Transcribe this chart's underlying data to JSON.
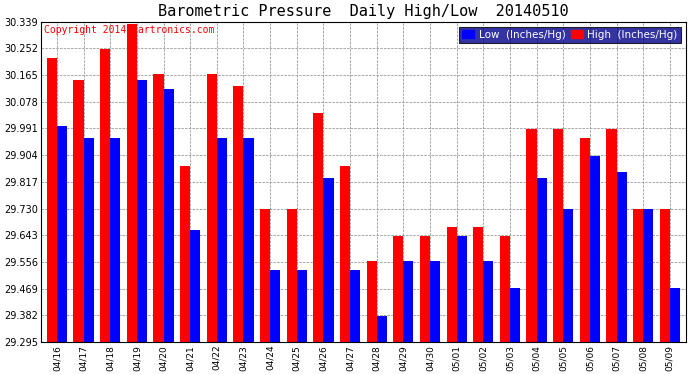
{
  "title": "Barometric Pressure  Daily High/Low  20140510",
  "copyright": "Copyright 2014 Cartronics.com",
  "dates": [
    "04/16",
    "04/17",
    "04/18",
    "04/19",
    "04/20",
    "04/21",
    "04/22",
    "04/23",
    "04/24",
    "04/25",
    "04/26",
    "04/27",
    "04/28",
    "04/29",
    "04/30",
    "05/01",
    "05/02",
    "05/03",
    "05/04",
    "05/05",
    "05/06",
    "05/07",
    "05/08",
    "05/09"
  ],
  "high": [
    30.22,
    30.15,
    30.25,
    30.33,
    30.17,
    29.87,
    30.17,
    30.13,
    29.73,
    29.73,
    30.04,
    29.87,
    29.56,
    29.64,
    29.64,
    29.67,
    29.67,
    29.64,
    29.99,
    29.99,
    29.96,
    29.99,
    29.73,
    29.73
  ],
  "low": [
    30.0,
    29.96,
    29.96,
    30.15,
    30.12,
    29.66,
    29.96,
    29.96,
    29.53,
    29.53,
    29.83,
    29.53,
    29.38,
    29.56,
    29.56,
    29.64,
    29.56,
    29.47,
    29.83,
    29.73,
    29.9,
    29.85,
    29.73,
    29.47
  ],
  "high_color": "#ff0000",
  "low_color": "#0000ff",
  "bg_color": "#ffffff",
  "grid_color": "#888888",
  "ymin": 29.295,
  "ymax": 30.339,
  "yticks": [
    29.295,
    29.382,
    29.469,
    29.556,
    29.643,
    29.73,
    29.817,
    29.904,
    29.991,
    30.078,
    30.165,
    30.252,
    30.339
  ],
  "title_fontsize": 11,
  "copyright_fontsize": 7,
  "legend_fontsize": 7.5,
  "tick_fontsize": 7,
  "xlabel_fontsize": 6.5
}
